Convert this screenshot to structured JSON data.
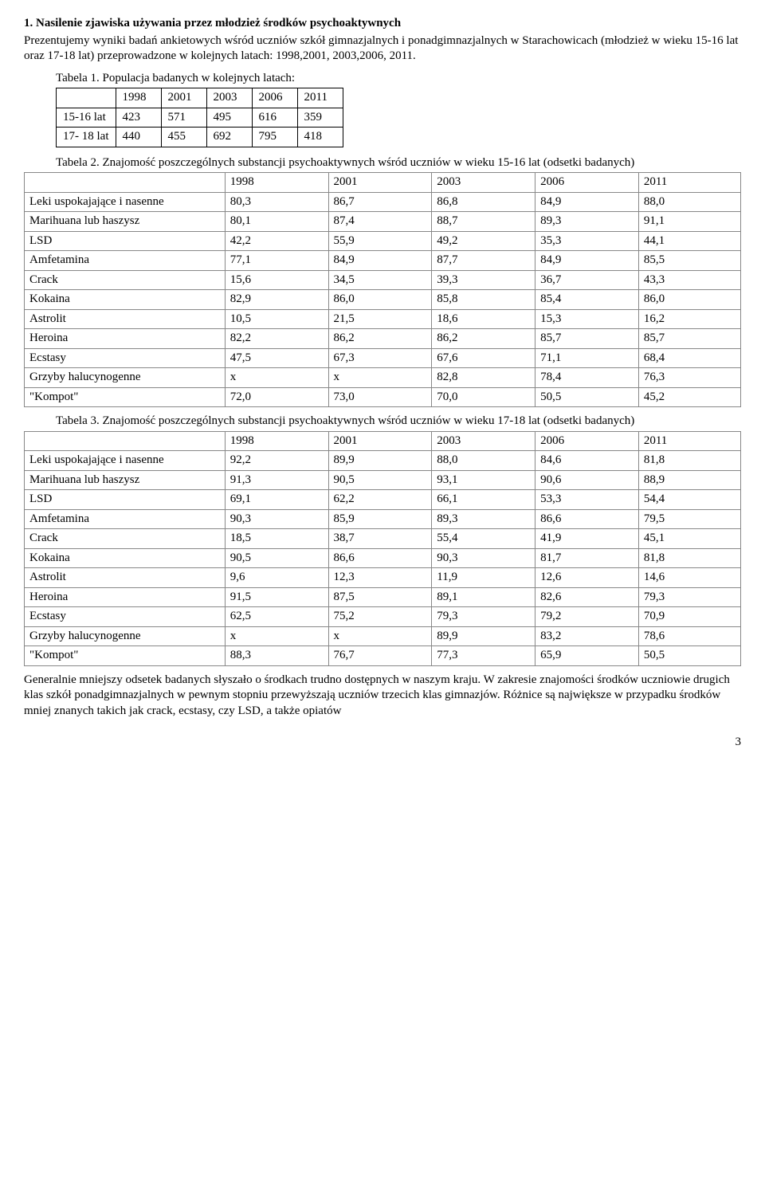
{
  "heading": "1. Nasilenie zjawiska używania przez młodzież środków psychoaktywnych",
  "intro": "Prezentujemy wyniki badań ankietowych wśród uczniów szkół gimnazjalnych i ponadgimnazjalnych  w Starachowicach (młodzież w wieku 15-16 lat oraz 17-18 lat) przeprowadzone w kolejnych latach: 1998,2001, 2003,2006, 2011.",
  "table1": {
    "caption": "Tabela 1. Populacja badanych w kolejnych latach:",
    "header": [
      "",
      "1998",
      "2001",
      "2003",
      "2006",
      "2011"
    ],
    "rows": [
      [
        "15-16 lat",
        "423",
        "571",
        "495",
        "616",
        "359"
      ],
      [
        "17- 18 lat",
        "440",
        "455",
        "692",
        "795",
        "418"
      ]
    ]
  },
  "table2": {
    "caption": "Tabela 2. Znajomość poszczególnych substancji psychoaktywnych wśród uczniów w wieku 15-16 lat (odsetki badanych)",
    "header": [
      "",
      "1998",
      "2001",
      "2003",
      "2006",
      "2011"
    ],
    "rows": [
      [
        "Leki uspokajające i nasenne",
        "80,3",
        "86,7",
        "86,8",
        "84,9",
        "88,0"
      ],
      [
        "Marihuana lub haszysz",
        "80,1",
        "87,4",
        "88,7",
        "89,3",
        "91,1"
      ],
      [
        "LSD",
        "42,2",
        "55,9",
        "49,2",
        "35,3",
        "44,1"
      ],
      [
        "Amfetamina",
        "77,1",
        "84,9",
        "87,7",
        "84,9",
        "85,5"
      ],
      [
        "Crack",
        "15,6",
        "34,5",
        "39,3",
        "36,7",
        "43,3"
      ],
      [
        "Kokaina",
        "82,9",
        "86,0",
        "85,8",
        "85,4",
        "86,0"
      ],
      [
        "Astrolit",
        "10,5",
        "21,5",
        "18,6",
        "15,3",
        "16,2"
      ],
      [
        "Heroina",
        "82,2",
        "86,2",
        "86,2",
        "85,7",
        "85,7"
      ],
      [
        "Ecstasy",
        "47,5",
        "67,3",
        "67,6",
        "71,1",
        "68,4"
      ],
      [
        "Grzyby halucynogenne",
        "x",
        "x",
        "82,8",
        "78,4",
        "76,3"
      ],
      [
        "\"Kompot\"",
        "72,0",
        "73,0",
        "70,0",
        "50,5",
        "45,2"
      ]
    ]
  },
  "table3": {
    "caption": "Tabela 3. Znajomość poszczególnych substancji psychoaktywnych wśród uczniów w wieku 17-18 lat (odsetki badanych)",
    "header": [
      "",
      "1998",
      "2001",
      "2003",
      "2006",
      "2011"
    ],
    "rows": [
      [
        "Leki uspokajające i nasenne",
        "92,2",
        "89,9",
        "88,0",
        "84,6",
        "81,8"
      ],
      [
        "Marihuana lub haszysz",
        "91,3",
        "90,5",
        "93,1",
        "90,6",
        "88,9"
      ],
      [
        "LSD",
        "69,1",
        "62,2",
        "66,1",
        "53,3",
        "54,4"
      ],
      [
        "Amfetamina",
        "90,3",
        "85,9",
        "89,3",
        "86,6",
        "79,5"
      ],
      [
        "Crack",
        "18,5",
        "38,7",
        "55,4",
        "41,9",
        "45,1"
      ],
      [
        "Kokaina",
        "90,5",
        "86,6",
        "90,3",
        "81,7",
        "81,8"
      ],
      [
        "Astrolit",
        "9,6",
        "12,3",
        "11,9",
        "12,6",
        "14,6"
      ],
      [
        "Heroina",
        "91,5",
        "87,5",
        "89,1",
        "82,6",
        "79,3"
      ],
      [
        "Ecstasy",
        "62,5",
        "75,2",
        "79,3",
        "79,2",
        "70,9"
      ],
      [
        "Grzyby halucynogenne",
        "x",
        "x",
        "89,9",
        "83,2",
        "78,6"
      ],
      [
        "\"Kompot\"",
        "88,3",
        "76,7",
        "77,3",
        "65,9",
        "50,5"
      ]
    ]
  },
  "closing": " Generalnie mniejszy odsetek badanych słyszało o środkach trudno dostępnych w naszym kraju. W zakresie znajomości środków uczniowie drugich klas szkół ponadgimnazjalnych w pewnym stopniu przewyższają uczniów trzecich klas gimnazjów. Różnice są największe w przypadku środków mniej znanych takich jak crack, ecstasy, czy LSD, a także opiatów",
  "pagenum": "3"
}
